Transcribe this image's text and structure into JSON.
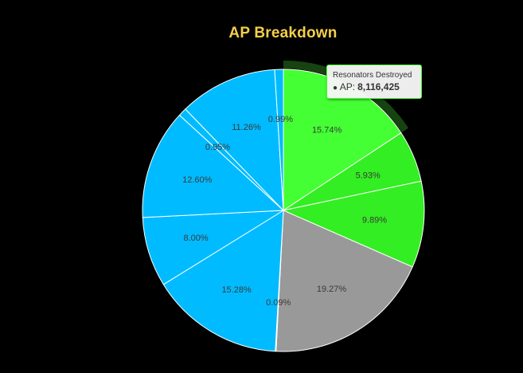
{
  "chart_data": {
    "type": "pie",
    "title": "AP Breakdown",
    "slices": [
      {
        "label": "Resonators Destroyed",
        "value": 15.74,
        "display": "15.74%",
        "color": "#44ff33"
      },
      {
        "label": "",
        "value": 5.93,
        "display": "5.93%",
        "color": "#33ee22"
      },
      {
        "label": "",
        "value": 9.89,
        "display": "9.89%",
        "color": "#33ee22"
      },
      {
        "label": "",
        "value": 19.27,
        "display": "19.27%",
        "color": "#999999"
      },
      {
        "label": "",
        "value": 0.09,
        "display": "0.09%",
        "color": "#00bbff"
      },
      {
        "label": "",
        "value": 15.28,
        "display": "15.28%",
        "color": "#00bbff"
      },
      {
        "label": "",
        "value": 8.0,
        "display": "8.00%",
        "color": "#00bbff"
      },
      {
        "label": "",
        "value": 12.6,
        "display": "12.60%",
        "color": "#00bbff"
      },
      {
        "label": "",
        "value": 0.95,
        "display": "0.95%",
        "color": "#00bbff"
      },
      {
        "label": "",
        "value": 11.26,
        "display": "11.26%",
        "color": "#00bbff"
      },
      {
        "label": "",
        "value": 0.99,
        "display": "0.99%",
        "color": "#00bbff"
      }
    ],
    "highlighted_slice": 0,
    "tooltip": {
      "title": "Resonators Destroyed",
      "marker": "●",
      "series_name": "AP:",
      "value": "8,116,425"
    }
  },
  "colors": {
    "background": "#000000",
    "title": "#f5cf4a",
    "slice_border": "#ffffff",
    "hover_halo": "#2a7a1f",
    "label_text": "#3a3a3a"
  }
}
